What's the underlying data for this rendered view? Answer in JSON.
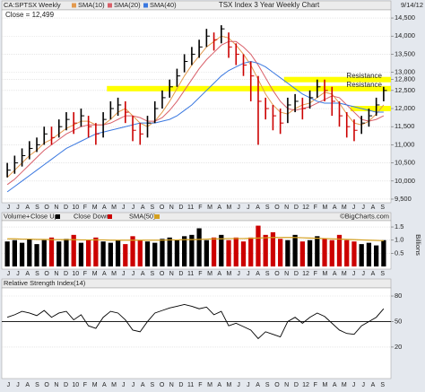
{
  "chart_data": [
    {
      "type": "ohlc",
      "header": "CA:SPTSX Weekly",
      "title": "TSX Index 3 Year Weekly Chart",
      "date": "9/14/12",
      "close_label": "Close = 12,499",
      "xlabels": [
        "J",
        "J",
        "A",
        "S",
        "O",
        "N",
        "D",
        "10",
        "F",
        "M",
        "A",
        "M",
        "J",
        "J",
        "A",
        "S",
        "O",
        "N",
        "D",
        "11",
        "F",
        "M",
        "A",
        "M",
        "J",
        "J",
        "A",
        "S",
        "O",
        "N",
        "D",
        "12",
        "F",
        "M",
        "A",
        "M",
        "J",
        "J",
        "A",
        "S"
      ],
      "high": [
        10500,
        10700,
        10900,
        11100,
        11200,
        11500,
        11500,
        11700,
        11900,
        11900,
        12000,
        11800,
        11600,
        11900,
        12200,
        12300,
        12200,
        11800,
        11600,
        11800,
        12200,
        12500,
        12800,
        13100,
        13500,
        13700,
        13900,
        14200,
        14100,
        14300,
        14100,
        13800,
        13500,
        13300,
        12900,
        12300,
        12100,
        12000,
        12300,
        12400,
        12300,
        12500,
        12800,
        12800,
        12600,
        12200,
        11900,
        11700,
        11800,
        12000,
        12300,
        12600
      ],
      "low": [
        10100,
        10200,
        10400,
        10600,
        10800,
        11000,
        11000,
        11200,
        11400,
        11300,
        11500,
        11200,
        11000,
        11200,
        11700,
        11800,
        11600,
        11100,
        11000,
        11200,
        11600,
        12000,
        12300,
        12600,
        13000,
        13200,
        13400,
        13700,
        13600,
        13800,
        13400,
        13200,
        12900,
        12200,
        11000,
        11700,
        11400,
        11300,
        11600,
        11900,
        11700,
        12000,
        12300,
        12200,
        11800,
        11500,
        11200,
        11100,
        11300,
        11500,
        11800,
        12200
      ],
      "close": [
        10300,
        10500,
        10700,
        10900,
        11000,
        11300,
        11200,
        11500,
        11700,
        11600,
        11800,
        11500,
        11300,
        11700,
        12000,
        12100,
        11900,
        11400,
        11300,
        11600,
        12000,
        12300,
        12600,
        12900,
        13300,
        13500,
        13700,
        14000,
        13900,
        14200,
        13700,
        13500,
        13200,
        12900,
        12200,
        12000,
        11800,
        11600,
        12100,
        12200,
        12000,
        12300,
        12600,
        12500,
        12200,
        11800,
        11500,
        11400,
        11600,
        11800,
        12100,
        12499
      ],
      "up_color": "#000000",
      "down_color": "#cc0000",
      "series": [
        {
          "name": "SMA(10)",
          "color": "#e39a4e",
          "values": [
            10100,
            10300,
            10500,
            10700,
            10850,
            11050,
            11150,
            11300,
            11450,
            11550,
            11650,
            11650,
            11550,
            11550,
            11700,
            11900,
            12000,
            11800,
            11600,
            11500,
            11650,
            11900,
            12200,
            12550,
            12900,
            13200,
            13450,
            13700,
            13850,
            14000,
            13950,
            13750,
            13500,
            13200,
            12800,
            12400,
            12100,
            11900,
            11850,
            12000,
            12100,
            12150,
            12300,
            12450,
            12400,
            12150,
            11850,
            11600,
            11550,
            11650,
            11850,
            12100
          ]
        },
        {
          "name": "SMA(20)",
          "color": "#d9606a",
          "values": [
            9900,
            10050,
            10250,
            10450,
            10650,
            10850,
            11000,
            11150,
            11300,
            11400,
            11500,
            11550,
            11550,
            11550,
            11600,
            11700,
            11800,
            11800,
            11750,
            11650,
            11650,
            11750,
            11950,
            12200,
            12500,
            12800,
            13100,
            13350,
            13550,
            13750,
            13850,
            13850,
            13700,
            13500,
            13200,
            12850,
            12500,
            12200,
            12000,
            11950,
            12000,
            12050,
            12150,
            12250,
            12350,
            12300,
            12100,
            11900,
            11700,
            11650,
            11700,
            11800
          ]
        },
        {
          "name": "SMA(40)",
          "color": "#3a78e0",
          "values": [
            9700,
            9850,
            10000,
            10150,
            10300,
            10450,
            10600,
            10750,
            10900,
            11000,
            11100,
            11200,
            11300,
            11350,
            11400,
            11450,
            11500,
            11550,
            11600,
            11600,
            11600,
            11650,
            11700,
            11800,
            11950,
            12100,
            12300,
            12500,
            12700,
            12900,
            13050,
            13150,
            13250,
            13300,
            13250,
            13150,
            13000,
            12850,
            12700,
            12550,
            12400,
            12300,
            12200,
            12150,
            12150,
            12150,
            12100,
            12050,
            12000,
            11950,
            11900,
            11900
          ]
        }
      ],
      "ylim": [
        9450,
        14650
      ],
      "yticks": [
        {
          "value": 9500,
          "label": "9,500"
        },
        {
          "value": 10000,
          "label": "10,000"
        },
        {
          "value": 10500,
          "label": "10,500"
        },
        {
          "value": 11000,
          "label": "11,000"
        },
        {
          "value": 11500,
          "label": "11,500"
        },
        {
          "value": 12000,
          "label": "12,000"
        },
        {
          "value": 12500,
          "label": "12,500"
        },
        {
          "value": 12800,
          "label": "12,800"
        },
        {
          "value": 13000,
          "label": "13,000"
        },
        {
          "value": 13500,
          "label": "13,500"
        },
        {
          "value": 14000,
          "label": "14,000"
        },
        {
          "value": 14500,
          "label": "14,500"
        }
      ],
      "annotations": [
        {
          "text": "Resistance",
          "value": 12800,
          "x_start": 38
        },
        {
          "text": "Resistance",
          "value": 12550,
          "x_start": 14
        },
        {
          "value": 12000,
          "x_start": 47
        }
      ],
      "annotation_color": "#ffff00",
      "grid": true
    },
    {
      "type": "volume",
      "header": "Volume+",
      "legend": [
        "Close Up",
        "Close Down"
      ],
      "credit": "©BigCharts.com",
      "y_label": "Billions",
      "values": [
        0.95,
        1.0,
        0.9,
        1.05,
        0.85,
        1.0,
        1.1,
        0.95,
        1.05,
        1.2,
        0.9,
        1.0,
        1.1,
        0.95,
        0.9,
        1.0,
        0.85,
        1.15,
        1.0,
        0.95,
        0.9,
        1.05,
        1.1,
        1.0,
        1.15,
        1.2,
        1.45,
        1.0,
        1.1,
        1.2,
        1.0,
        1.1,
        0.95,
        1.1,
        1.55,
        1.2,
        1.3,
        1.05,
        1.0,
        1.2,
        0.95,
        1.0,
        1.15,
        1.05,
        1.0,
        1.2,
        1.0,
        0.95,
        0.85,
        0.9,
        0.8,
        1.0
      ],
      "sma": {
        "name": "SMA(50)",
        "color": "#d4a020",
        "values": [
          1.05,
          1.05,
          1.04,
          1.04,
          1.03,
          1.03,
          1.02,
          1.02,
          1.02,
          1.02,
          1.01,
          1.01,
          1.01,
          1.01,
          1.0,
          1.0,
          1.0,
          1.0,
          1.0,
          1.0,
          1.0,
          1.0,
          1.01,
          1.01,
          1.02,
          1.02,
          1.03,
          1.04,
          1.05,
          1.05,
          1.06,
          1.06,
          1.06,
          1.07,
          1.08,
          1.09,
          1.1,
          1.1,
          1.1,
          1.1,
          1.09,
          1.08,
          1.07,
          1.06,
          1.05,
          1.04,
          1.03,
          1.02,
          1.01,
          1.0,
          0.99,
          0.98
        ]
      },
      "ylim": [
        -0.1,
        1.74
      ],
      "yticks": [
        0.5,
        {
          "value": 1,
          "label": "1.0"
        },
        1.5
      ],
      "grid": true
    },
    {
      "type": "line",
      "title": "Relative Strength Index(14)",
      "color": "#000000",
      "values": [
        55,
        58,
        62,
        60,
        57,
        63,
        55,
        60,
        62,
        52,
        58,
        45,
        42,
        55,
        62,
        60,
        52,
        40,
        38,
        50,
        60,
        63,
        66,
        68,
        70,
        68,
        65,
        67,
        58,
        62,
        45,
        48,
        44,
        40,
        30,
        38,
        35,
        32,
        50,
        55,
        48,
        55,
        60,
        56,
        48,
        40,
        36,
        35,
        45,
        50,
        55,
        65
      ],
      "reference_line": 50,
      "ylim": [
        -17,
        89.5
      ],
      "yticks": [
        20,
        50,
        80
      ],
      "grid": true
    }
  ]
}
